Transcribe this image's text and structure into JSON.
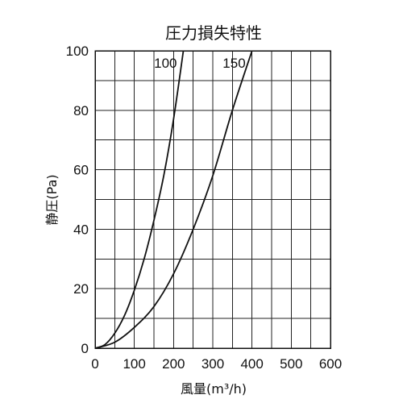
{
  "chart_data": {
    "type": "line",
    "title": "圧力損失特性",
    "xlabel": "風量(m³/h)",
    "ylabel": "静圧(Pa)",
    "xlim": [
      0,
      600
    ],
    "ylim": [
      0,
      100
    ],
    "x_ticks": [
      "0",
      "100",
      "200",
      "300",
      "400",
      "500",
      "600"
    ],
    "y_ticks": [
      "0",
      "20",
      "40",
      "60",
      "80",
      "100"
    ],
    "x_grid_step": 50,
    "y_grid_step": 10,
    "grid": true,
    "series": [
      {
        "name": "100",
        "x": [
          0,
          25,
          50,
          75,
          100,
          125,
          150,
          175,
          200,
          225
        ],
        "y": [
          0,
          1.2,
          5,
          11,
          19.5,
          30,
          43,
          58,
          77,
          100
        ]
      },
      {
        "name": "150",
        "x": [
          0,
          50,
          100,
          150,
          200,
          250,
          300,
          350,
          400
        ],
        "y": [
          0,
          2,
          7,
          14,
          25,
          40,
          58,
          80,
          100
        ]
      }
    ]
  }
}
